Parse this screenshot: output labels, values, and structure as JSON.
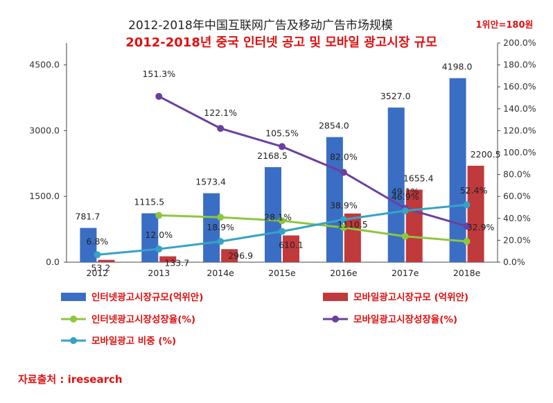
{
  "chart_data": {
    "type": "bar+line",
    "title": "2012-2018年中国互联网广告及移动广告市场规模",
    "subtitle": "2012-2018년 중국 인터넷 공고 및 모바일 광고시장 규모",
    "unit_note": "1위안=180원",
    "categories": [
      "2012",
      "2013",
      "2014e",
      "2015e",
      "2016e",
      "2017e",
      "2018e"
    ],
    "left_axis": {
      "ticks": [
        "0.0",
        "1500.0",
        "3000.0",
        "4500.0"
      ],
      "ylim": [
        0,
        5000
      ]
    },
    "right_axis": {
      "ticks": [
        "0.0%",
        "20.0%",
        "40.0%",
        "60.0%",
        "80.0%",
        "100.0%",
        "120.0%",
        "140.0%",
        "160.0%",
        "180.0%",
        "200.0%"
      ],
      "ylim": [
        0,
        200
      ]
    },
    "bar_series": [
      {
        "name": "인터넷광고시장규모(억위안)",
        "color": "#3a6ec4",
        "values": [
          781.7,
          1115.5,
          1573.4,
          2168.5,
          2854.0,
          3527.0,
          4198.0
        ],
        "labels": [
          "781.7",
          "1115.5",
          "1573.4",
          "2168.5",
          "2854.0",
          "3527.0",
          "4198.0"
        ]
      },
      {
        "name": "모바일광고시장규모 (억위안)",
        "color": "#c0393b",
        "values": [
          53.2,
          133.7,
          296.9,
          610.1,
          1110.5,
          1655.4,
          2200.5
        ],
        "labels": [
          "53.2",
          "133.7",
          "296.9",
          "610.1",
          "1110.5",
          "1655.4",
          "2200.5"
        ]
      }
    ],
    "line_series": [
      {
        "name": "인터넷광고시장성장율(%)",
        "color": "#8dc63f",
        "values": [
          null,
          42.7,
          41.0,
          37.8,
          31.6,
          23.6,
          19.0
        ],
        "labels": []
      },
      {
        "name": "모바일광고시장성장율(%)",
        "color": "#6b3fa0",
        "values": [
          null,
          151.3,
          122.1,
          105.5,
          82.0,
          49.1,
          32.9
        ],
        "labels": [
          "",
          "151.3%",
          "122.1%",
          "105.5%",
          "82.0%",
          "49.1%",
          "32.9%"
        ]
      },
      {
        "name": "모바일광고 비중 (%)",
        "color": "#36a2c6",
        "values": [
          6.8,
          12.0,
          18.9,
          28.1,
          38.9,
          46.9,
          52.4
        ],
        "labels": [
          "6.8%",
          "12.0%",
          "18.9%",
          "28.1%",
          "38.9%",
          "46.9%",
          "52.4%"
        ]
      }
    ],
    "source": "자료출처 : iresearch"
  }
}
